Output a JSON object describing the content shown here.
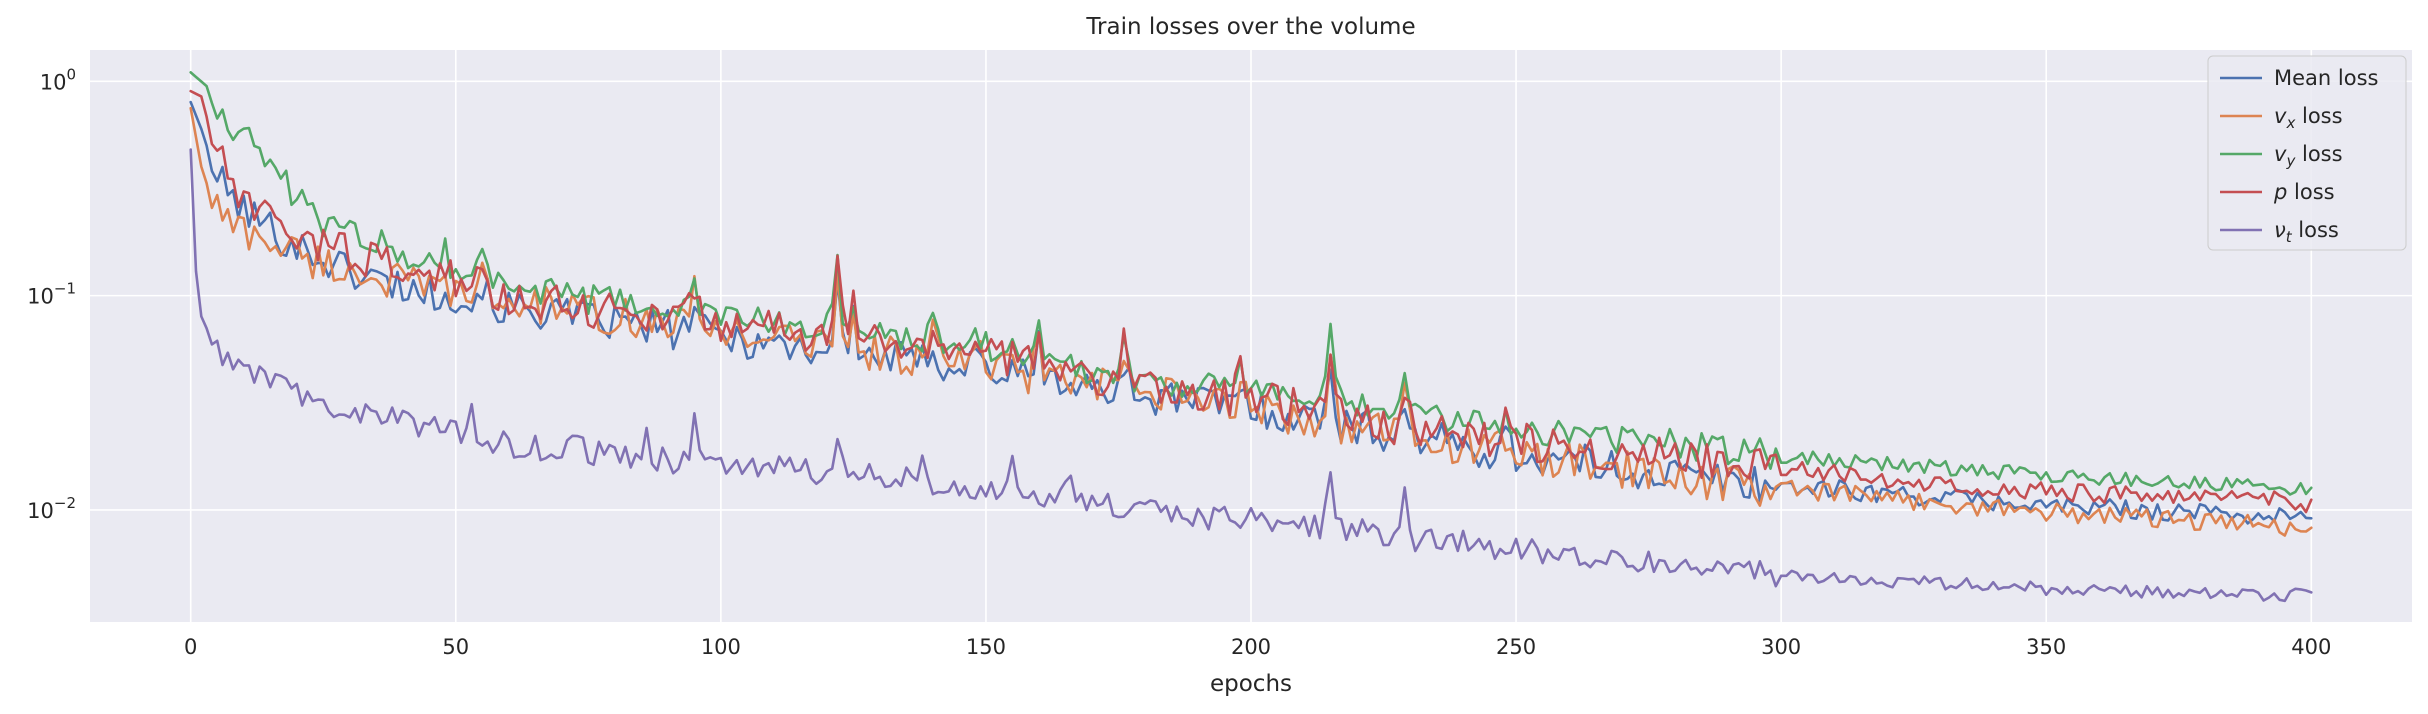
{
  "chart_data": {
    "type": "line",
    "title": "Train losses over the volume",
    "xlabel": "epochs",
    "ylabel": "",
    "yscale": "log",
    "xlim": [
      -19,
      419
    ],
    "ylim": [
      0.003,
      1.4
    ],
    "x_ticks": [
      0,
      50,
      100,
      150,
      200,
      250,
      300,
      350,
      400
    ],
    "y_ticks": [
      {
        "value": 1,
        "base": "10",
        "exp": "0"
      },
      {
        "value": 0.1,
        "base": "10",
        "exp": "−1"
      },
      {
        "value": 0.01,
        "base": "10",
        "exp": "−2"
      }
    ],
    "grid": true,
    "legend_position": "top-right",
    "epochs": 400,
    "series": [
      {
        "key": "mean",
        "name": "Mean loss",
        "label_main": "Mean loss",
        "label_sub": "",
        "label_suffix": "",
        "color": "#4c72b0",
        "anchors": [
          [
            0,
            0.8
          ],
          [
            2,
            0.6
          ],
          [
            5,
            0.35
          ],
          [
            10,
            0.25
          ],
          [
            20,
            0.17
          ],
          [
            30,
            0.13
          ],
          [
            50,
            0.095
          ],
          [
            70,
            0.08
          ],
          [
            100,
            0.065
          ],
          [
            120,
            0.055
          ],
          [
            150,
            0.045
          ],
          [
            175,
            0.035
          ],
          [
            200,
            0.03
          ],
          [
            225,
            0.023
          ],
          [
            250,
            0.018
          ],
          [
            275,
            0.015
          ],
          [
            300,
            0.013
          ],
          [
            350,
            0.0105
          ],
          [
            400,
            0.0092
          ]
        ],
        "noise": 0.09,
        "spikes": [
          [
            48,
            1.25
          ],
          [
            55,
            1.3
          ],
          [
            68,
            1.25
          ],
          [
            95,
            1.4
          ],
          [
            122,
            2.0
          ],
          [
            125,
            1.4
          ],
          [
            140,
            1.3
          ],
          [
            148,
            1.3
          ],
          [
            160,
            1.5
          ],
          [
            176,
            1.5
          ],
          [
            198,
            1.3
          ],
          [
            215,
            2.0
          ],
          [
            229,
            1.5
          ],
          [
            248,
            1.2
          ]
        ]
      },
      {
        "key": "vx",
        "name": "v_x loss",
        "label_main": "v",
        "label_sub": "x",
        "label_suffix": " loss",
        "color": "#dd8452",
        "anchors": [
          [
            0,
            0.75
          ],
          [
            2,
            0.4
          ],
          [
            4,
            0.28
          ],
          [
            8,
            0.21
          ],
          [
            15,
            0.18
          ],
          [
            25,
            0.14
          ],
          [
            50,
            0.1
          ],
          [
            70,
            0.085
          ],
          [
            100,
            0.07
          ],
          [
            120,
            0.058
          ],
          [
            150,
            0.047
          ],
          [
            175,
            0.036
          ],
          [
            200,
            0.03
          ],
          [
            225,
            0.023
          ],
          [
            250,
            0.018
          ],
          [
            275,
            0.0148
          ],
          [
            300,
            0.0125
          ],
          [
            350,
            0.0098
          ],
          [
            400,
            0.0082
          ]
        ],
        "noise": 0.09,
        "spikes": [
          [
            48,
            1.25
          ],
          [
            55,
            1.3
          ],
          [
            68,
            1.25
          ],
          [
            95,
            1.4
          ],
          [
            122,
            2.0
          ],
          [
            125,
            1.4
          ],
          [
            140,
            1.3
          ],
          [
            148,
            1.3
          ],
          [
            160,
            1.5
          ],
          [
            176,
            1.5
          ],
          [
            198,
            1.3
          ],
          [
            215,
            2.0
          ],
          [
            229,
            1.5
          ],
          [
            248,
            1.2
          ]
        ]
      },
      {
        "key": "vy",
        "name": "v_y loss",
        "label_main": "v",
        "label_sub": "y",
        "label_suffix": " loss",
        "color": "#55a868",
        "anchors": [
          [
            0,
            1.1
          ],
          [
            3,
            0.95
          ],
          [
            5,
            0.75
          ],
          [
            10,
            0.55
          ],
          [
            15,
            0.42
          ],
          [
            20,
            0.28
          ],
          [
            25,
            0.22
          ],
          [
            40,
            0.16
          ],
          [
            50,
            0.13
          ],
          [
            70,
            0.1
          ],
          [
            100,
            0.08
          ],
          [
            120,
            0.07
          ],
          [
            150,
            0.058
          ],
          [
            175,
            0.042
          ],
          [
            200,
            0.036
          ],
          [
            225,
            0.029
          ],
          [
            250,
            0.024
          ],
          [
            275,
            0.021
          ],
          [
            300,
            0.018
          ],
          [
            350,
            0.0145
          ],
          [
            400,
            0.0125
          ]
        ],
        "noise": 0.07,
        "spikes": [
          [
            48,
            1.25
          ],
          [
            55,
            1.3
          ],
          [
            68,
            1.25
          ],
          [
            95,
            1.4
          ],
          [
            122,
            2.0
          ],
          [
            125,
            1.4
          ],
          [
            140,
            1.3
          ],
          [
            148,
            1.3
          ],
          [
            160,
            1.5
          ],
          [
            176,
            1.5
          ],
          [
            198,
            1.3
          ],
          [
            215,
            2.0
          ],
          [
            229,
            1.5
          ],
          [
            248,
            1.2
          ]
        ]
      },
      {
        "key": "p",
        "name": "p loss",
        "label_main": "p",
        "label_sub": "",
        "label_suffix": " loss",
        "color": "#c44e52",
        "anchors": [
          [
            0,
            0.9
          ],
          [
            2,
            0.85
          ],
          [
            4,
            0.55
          ],
          [
            7,
            0.35
          ],
          [
            12,
            0.24
          ],
          [
            20,
            0.19
          ],
          [
            30,
            0.16
          ],
          [
            50,
            0.11
          ],
          [
            70,
            0.09
          ],
          [
            100,
            0.075
          ],
          [
            120,
            0.065
          ],
          [
            150,
            0.053
          ],
          [
            175,
            0.04
          ],
          [
            200,
            0.033
          ],
          [
            225,
            0.025
          ],
          [
            250,
            0.021
          ],
          [
            275,
            0.018
          ],
          [
            300,
            0.0155
          ],
          [
            350,
            0.0122
          ],
          [
            400,
            0.0108
          ]
        ],
        "noise": 0.09,
        "spikes": [
          [
            48,
            1.25
          ],
          [
            55,
            1.3
          ],
          [
            68,
            1.25
          ],
          [
            95,
            1.4
          ],
          [
            122,
            2.0
          ],
          [
            125,
            1.4
          ],
          [
            140,
            1.3
          ],
          [
            148,
            1.3
          ],
          [
            160,
            1.5
          ],
          [
            176,
            1.5
          ],
          [
            198,
            1.3
          ],
          [
            215,
            2.0
          ],
          [
            229,
            1.5
          ],
          [
            248,
            1.2
          ]
        ]
      },
      {
        "key": "nut",
        "name": "ν_t loss",
        "label_main": "ν",
        "label_sub": "t",
        "label_suffix": " loss",
        "color": "#8172b3",
        "anchors": [
          [
            0,
            0.48
          ],
          [
            1,
            0.13
          ],
          [
            2,
            0.08
          ],
          [
            4,
            0.062
          ],
          [
            6,
            0.05
          ],
          [
            10,
            0.045
          ],
          [
            15,
            0.04
          ],
          [
            25,
            0.031
          ],
          [
            40,
            0.026
          ],
          [
            60,
            0.02
          ],
          [
            80,
            0.018
          ],
          [
            100,
            0.016
          ],
          [
            120,
            0.015
          ],
          [
            140,
            0.0135
          ],
          [
            160,
            0.0115
          ],
          [
            180,
            0.0098
          ],
          [
            200,
            0.009
          ],
          [
            215,
            0.0082
          ],
          [
            230,
            0.0074
          ],
          [
            250,
            0.0066
          ],
          [
            275,
            0.0058
          ],
          [
            300,
            0.005
          ],
          [
            325,
            0.0046
          ],
          [
            350,
            0.0043
          ],
          [
            375,
            0.0041
          ],
          [
            400,
            0.004
          ]
        ],
        "noise": 0.06,
        "spikes": [
          [
            53,
            1.35
          ],
          [
            73,
            1.3
          ],
          [
            86,
            1.3
          ],
          [
            95,
            1.55
          ],
          [
            122,
            1.65
          ],
          [
            138,
            1.4
          ],
          [
            155,
            1.3
          ],
          [
            166,
            1.45
          ],
          [
            215,
            1.7
          ],
          [
            229,
            1.5
          ]
        ]
      }
    ]
  }
}
